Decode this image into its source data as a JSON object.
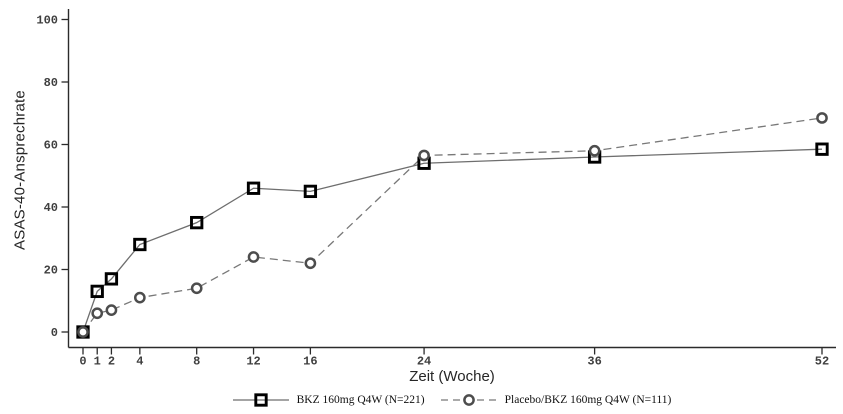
{
  "chart_data": {
    "type": "line",
    "title": "",
    "xlabel": "Zeit (Woche)",
    "ylabel": "ASAS-40-Ansprechrate",
    "xlim": [
      0,
      53
    ],
    "ylim": [
      0,
      100
    ],
    "grid": false,
    "legend_position": "bottom-center",
    "x_ticks": [
      0,
      1,
      2,
      4,
      8,
      12,
      16,
      24,
      36,
      52
    ],
    "y_ticks": [
      0,
      20,
      40,
      60,
      80,
      100
    ],
    "axis_color": "#2b2b2b",
    "tick_label_color": "#3f3f3f",
    "series": [
      {
        "name": "BKZ 160mg Q4W (N=221)",
        "marker": "square",
        "marker_color": "#000000",
        "line_style": "solid",
        "line_color": "#6e6e6e",
        "x": [
          0,
          1,
          2,
          4,
          8,
          12,
          16,
          24,
          36,
          52
        ],
        "values": [
          0,
          13,
          17,
          28,
          35,
          46,
          45,
          54,
          56,
          58.5
        ]
      },
      {
        "name": "Placebo/BKZ 160mg Q4W (N=111)",
        "marker": "circle",
        "marker_color": "#4d4d4d",
        "line_style": "dashed",
        "line_color": "#787878",
        "x": [
          0,
          1,
          2,
          4,
          8,
          12,
          16,
          24,
          36,
          52
        ],
        "values": [
          0,
          6,
          7,
          11,
          14,
          24,
          22,
          56.5,
          58,
          68.5
        ]
      }
    ]
  }
}
